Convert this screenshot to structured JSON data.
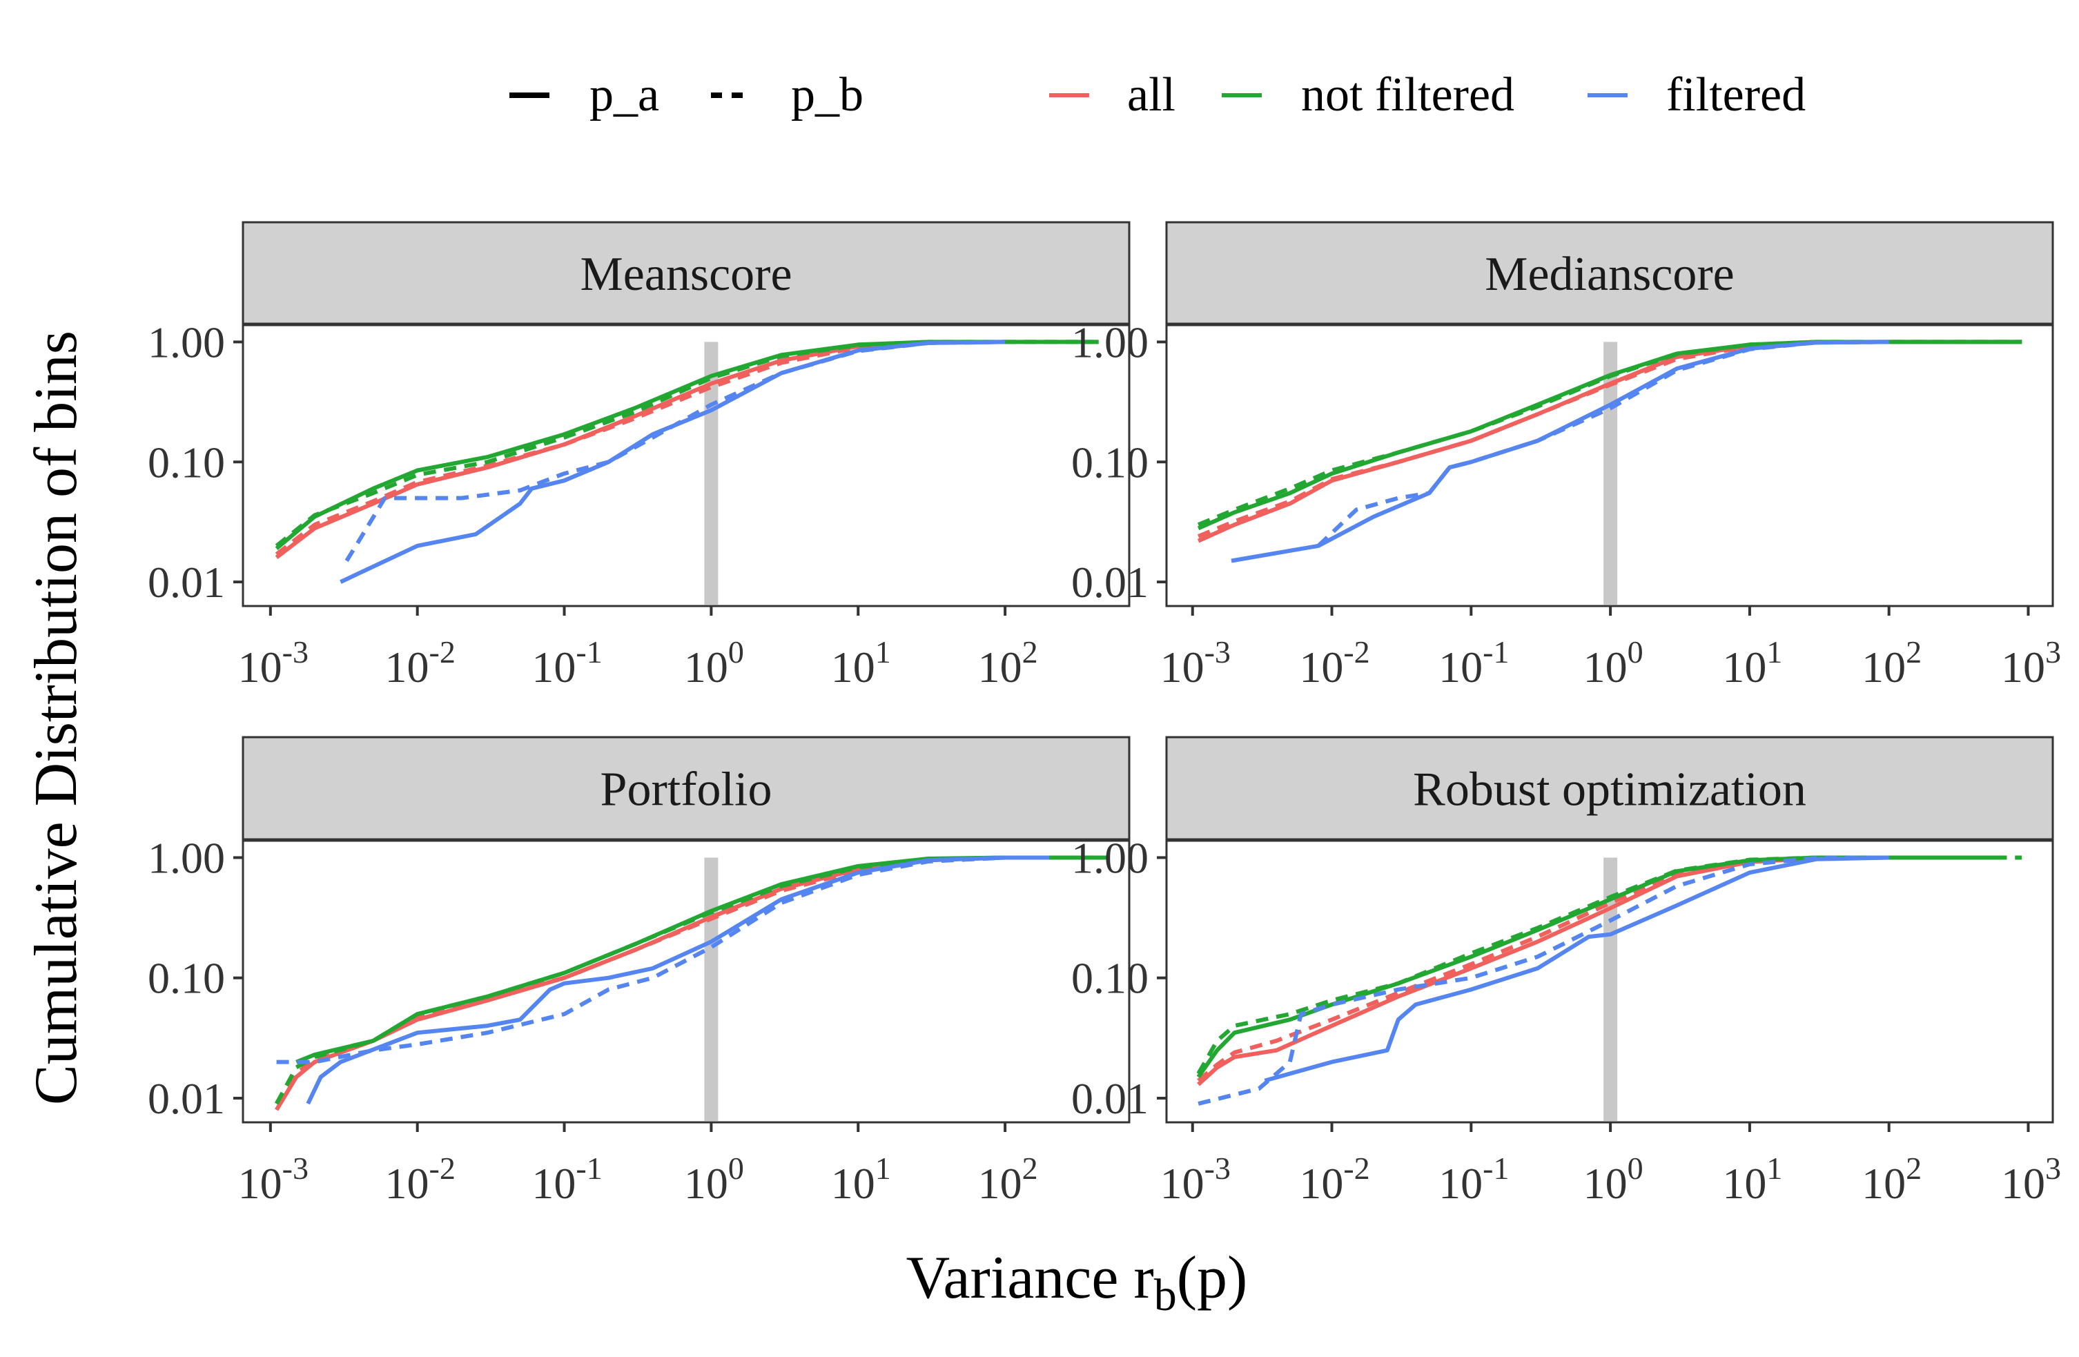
{
  "legend": {
    "linetypes": [
      {
        "label": "p_a",
        "dash": "solid"
      },
      {
        "label": "p_b",
        "dash": "dashed"
      }
    ],
    "groups": [
      {
        "label": "all",
        "color": "#F0605C"
      },
      {
        "label": "not filtered",
        "color": "#22A832"
      },
      {
        "label": "filtered",
        "color": "#5585F0"
      }
    ]
  },
  "axes": {
    "ylabel": "Cumulative Distribution of bins",
    "xlabel_main": "Variance  r",
    "xlabel_sub": "b",
    "xlabel_tail": "(p)"
  },
  "chart_data": [
    {
      "type": "line",
      "title": "Meanscore",
      "x_scale": "log10",
      "y_scale": "log10",
      "xlim": [
        0.00065,
        700
      ],
      "ylim": [
        0.0063,
        1.4
      ],
      "x_ticks": [
        0.001,
        0.01,
        0.1,
        1,
        10,
        100
      ],
      "y_ticks": [
        0.01,
        0.1,
        1
      ],
      "y_tick_labels": [
        "0.01",
        "0.10",
        "1.00"
      ],
      "reference_x": 1,
      "series": [
        {
          "group": "all",
          "linetype": "p_a",
          "x": [
            0.0011,
            0.002,
            0.005,
            0.01,
            0.03,
            0.1,
            0.3,
            1,
            3,
            10,
            30,
            100
          ],
          "y": [
            0.016,
            0.028,
            0.045,
            0.065,
            0.09,
            0.14,
            0.24,
            0.45,
            0.7,
            0.92,
            0.99,
            1.0
          ]
        },
        {
          "group": "all",
          "linetype": "p_b",
          "x": [
            0.0011,
            0.002,
            0.005,
            0.01,
            0.03,
            0.1,
            0.3,
            1,
            3,
            10,
            30,
            100,
            500
          ],
          "y": [
            0.017,
            0.03,
            0.047,
            0.068,
            0.093,
            0.14,
            0.23,
            0.42,
            0.67,
            0.9,
            0.99,
            1.0,
            1.0
          ]
        },
        {
          "group": "not filtered",
          "linetype": "p_a",
          "x": [
            0.0011,
            0.002,
            0.005,
            0.01,
            0.03,
            0.1,
            0.3,
            1,
            3,
            10,
            30,
            100,
            400
          ],
          "y": [
            0.019,
            0.035,
            0.06,
            0.085,
            0.11,
            0.17,
            0.28,
            0.52,
            0.78,
            0.95,
            1.0,
            1.0,
            1.0
          ]
        },
        {
          "group": "not filtered",
          "linetype": "p_b",
          "x": [
            0.0011,
            0.002,
            0.005,
            0.01,
            0.03,
            0.1,
            0.3,
            1,
            3,
            10,
            30,
            100,
            480
          ],
          "y": [
            0.02,
            0.036,
            0.055,
            0.078,
            0.1,
            0.16,
            0.26,
            0.5,
            0.76,
            0.94,
            1.0,
            1.0,
            1.0
          ]
        },
        {
          "group": "filtered",
          "linetype": "p_a",
          "x": [
            0.003,
            0.01,
            0.025,
            0.05,
            0.06,
            0.1,
            0.2,
            0.4,
            1,
            3,
            10,
            30,
            100
          ],
          "y": [
            0.01,
            0.02,
            0.025,
            0.045,
            0.06,
            0.07,
            0.1,
            0.17,
            0.27,
            0.55,
            0.85,
            0.98,
            1.0
          ]
        },
        {
          "group": "filtered",
          "linetype": "p_b",
          "x": [
            0.0033,
            0.004,
            0.006,
            0.02,
            0.05,
            0.1,
            0.2,
            0.4,
            1,
            3,
            10,
            30,
            100
          ],
          "y": [
            0.015,
            0.022,
            0.05,
            0.05,
            0.058,
            0.08,
            0.1,
            0.16,
            0.3,
            0.55,
            0.84,
            0.98,
            1.0
          ]
        }
      ]
    },
    {
      "type": "line",
      "title": "Medianscore",
      "x_scale": "log10",
      "y_scale": "log10",
      "xlim": [
        0.00065,
        1500
      ],
      "ylim": [
        0.0063,
        1.4
      ],
      "x_ticks": [
        0.001,
        0.01,
        0.1,
        1,
        10,
        100,
        1000
      ],
      "y_ticks": [
        0.01,
        0.1,
        1
      ],
      "y_tick_labels": [
        "0.01",
        "0.10",
        "1.00"
      ],
      "reference_x": 1,
      "series": [
        {
          "group": "all",
          "linetype": "p_a",
          "x": [
            0.0011,
            0.002,
            0.005,
            0.01,
            0.03,
            0.1,
            0.3,
            1,
            3,
            10,
            30,
            100,
            900
          ],
          "y": [
            0.022,
            0.03,
            0.045,
            0.07,
            0.1,
            0.15,
            0.25,
            0.45,
            0.75,
            0.93,
            0.99,
            1.0,
            1.0
          ]
        },
        {
          "group": "all",
          "linetype": "p_b",
          "x": [
            0.0011,
            0.002,
            0.005,
            0.01,
            0.03,
            0.1,
            0.3,
            1,
            3,
            10,
            30,
            100,
            900
          ],
          "y": [
            0.024,
            0.032,
            0.047,
            0.072,
            0.1,
            0.15,
            0.25,
            0.44,
            0.72,
            0.92,
            0.99,
            1.0,
            1.0
          ]
        },
        {
          "group": "not filtered",
          "linetype": "p_a",
          "x": [
            0.0011,
            0.002,
            0.005,
            0.01,
            0.03,
            0.1,
            0.3,
            1,
            3,
            10,
            30,
            100,
            900
          ],
          "y": [
            0.028,
            0.038,
            0.055,
            0.08,
            0.12,
            0.18,
            0.3,
            0.53,
            0.8,
            0.95,
            1.0,
            1.0,
            1.0
          ]
        },
        {
          "group": "not filtered",
          "linetype": "p_b",
          "x": [
            0.0011,
            0.002,
            0.005,
            0.01,
            0.03,
            0.1,
            0.3,
            1,
            3,
            10,
            30,
            100,
            900
          ],
          "y": [
            0.03,
            0.04,
            0.06,
            0.085,
            0.12,
            0.18,
            0.29,
            0.52,
            0.79,
            0.95,
            1.0,
            1.0,
            1.0
          ]
        },
        {
          "group": "filtered",
          "linetype": "p_a",
          "x": [
            0.0019,
            0.008,
            0.02,
            0.05,
            0.07,
            0.1,
            0.3,
            1,
            3,
            10,
            30,
            100
          ],
          "y": [
            0.015,
            0.02,
            0.035,
            0.055,
            0.09,
            0.1,
            0.15,
            0.3,
            0.6,
            0.88,
            0.99,
            1.0
          ]
        },
        {
          "group": "filtered",
          "linetype": "p_b",
          "x": [
            0.008,
            0.015,
            0.03,
            0.05,
            0.07,
            0.1,
            0.3,
            1,
            3,
            10,
            30,
            100
          ],
          "y": [
            0.02,
            0.04,
            0.05,
            0.055,
            0.09,
            0.1,
            0.15,
            0.28,
            0.58,
            0.87,
            0.99,
            1.0
          ]
        }
      ]
    },
    {
      "type": "line",
      "title": "Portfolio",
      "x_scale": "log10",
      "y_scale": "log10",
      "xlim": [
        0.00065,
        700
      ],
      "ylim": [
        0.0063,
        1.4
      ],
      "x_ticks": [
        0.001,
        0.01,
        0.1,
        1,
        10,
        100
      ],
      "y_ticks": [
        0.01,
        0.1,
        1
      ],
      "y_tick_labels": [
        "0.01",
        "0.10",
        "1.00"
      ],
      "reference_x": 1,
      "series": [
        {
          "group": "all",
          "linetype": "p_a",
          "x": [
            0.0011,
            0.0015,
            0.002,
            0.005,
            0.01,
            0.03,
            0.1,
            0.3,
            1,
            3,
            10,
            30,
            100
          ],
          "y": [
            0.008,
            0.015,
            0.02,
            0.03,
            0.045,
            0.065,
            0.1,
            0.17,
            0.32,
            0.55,
            0.8,
            0.96,
            1.0
          ]
        },
        {
          "group": "all",
          "linetype": "p_b",
          "x": [
            0.0011,
            0.0015,
            0.002,
            0.005,
            0.01,
            0.03,
            0.1,
            0.3,
            1,
            3,
            10,
            30,
            100
          ],
          "y": [
            0.009,
            0.016,
            0.021,
            0.03,
            0.047,
            0.067,
            0.1,
            0.17,
            0.31,
            0.53,
            0.78,
            0.95,
            1.0
          ]
        },
        {
          "group": "not filtered",
          "linetype": "p_a",
          "x": [
            0.0015,
            0.002,
            0.005,
            0.01,
            0.03,
            0.1,
            0.3,
            1,
            3,
            10,
            30,
            100,
            500
          ],
          "y": [
            0.02,
            0.023,
            0.03,
            0.05,
            0.07,
            0.11,
            0.19,
            0.36,
            0.6,
            0.85,
            0.98,
            1.0,
            1.0
          ]
        },
        {
          "group": "not filtered",
          "linetype": "p_b",
          "x": [
            0.0011,
            0.0015,
            0.002,
            0.005,
            0.01,
            0.03,
            0.1,
            0.3,
            1,
            3,
            10,
            30,
            100,
            480
          ],
          "y": [
            0.009,
            0.018,
            0.022,
            0.03,
            0.05,
            0.07,
            0.11,
            0.19,
            0.35,
            0.58,
            0.83,
            0.97,
            1.0,
            1.0
          ]
        },
        {
          "group": "filtered",
          "linetype": "p_a",
          "x": [
            0.0018,
            0.0022,
            0.003,
            0.01,
            0.03,
            0.05,
            0.08,
            0.1,
            0.2,
            0.4,
            1,
            3,
            10,
            30,
            100,
            200
          ],
          "y": [
            0.009,
            0.015,
            0.02,
            0.035,
            0.04,
            0.045,
            0.08,
            0.09,
            0.1,
            0.12,
            0.2,
            0.45,
            0.75,
            0.95,
            1.0,
            1.0
          ]
        },
        {
          "group": "filtered",
          "linetype": "p_b",
          "x": [
            0.0011,
            0.002,
            0.005,
            0.01,
            0.03,
            0.1,
            0.2,
            0.4,
            1,
            3,
            10,
            30,
            100
          ],
          "y": [
            0.02,
            0.02,
            0.025,
            0.028,
            0.035,
            0.05,
            0.08,
            0.1,
            0.18,
            0.42,
            0.72,
            0.93,
            1.0
          ]
        }
      ]
    },
    {
      "type": "line",
      "title": "Robust optimization",
      "x_scale": "log10",
      "y_scale": "log10",
      "xlim": [
        0.00065,
        1500
      ],
      "ylim": [
        0.0063,
        1.4
      ],
      "x_ticks": [
        0.001,
        0.01,
        0.1,
        1,
        10,
        100,
        1000
      ],
      "y_ticks": [
        0.01,
        0.1,
        1
      ],
      "y_tick_labels": [
        "0.01",
        "0.10",
        "1.00"
      ],
      "reference_x": 1,
      "series": [
        {
          "group": "all",
          "linetype": "p_a",
          "x": [
            0.0011,
            0.0015,
            0.002,
            0.004,
            0.01,
            0.03,
            0.1,
            0.3,
            1,
            3,
            10,
            30,
            100,
            700
          ],
          "y": [
            0.013,
            0.018,
            0.022,
            0.025,
            0.04,
            0.07,
            0.12,
            0.2,
            0.38,
            0.7,
            0.92,
            0.99,
            1.0,
            1.0
          ]
        },
        {
          "group": "all",
          "linetype": "p_b",
          "x": [
            0.0011,
            0.0015,
            0.002,
            0.004,
            0.01,
            0.03,
            0.1,
            0.3,
            1,
            3,
            10,
            30,
            100,
            700
          ],
          "y": [
            0.014,
            0.019,
            0.024,
            0.03,
            0.045,
            0.075,
            0.13,
            0.22,
            0.42,
            0.72,
            0.93,
            0.99,
            1.0,
            1.0
          ]
        },
        {
          "group": "not filtered",
          "linetype": "p_a",
          "x": [
            0.0011,
            0.0015,
            0.002,
            0.005,
            0.01,
            0.03,
            0.1,
            0.3,
            1,
            3,
            10,
            30,
            100,
            700
          ],
          "y": [
            0.015,
            0.025,
            0.035,
            0.045,
            0.06,
            0.09,
            0.15,
            0.25,
            0.45,
            0.77,
            0.95,
            1.0,
            1.0,
            1.0
          ]
        },
        {
          "group": "not filtered",
          "linetype": "p_b",
          "x": [
            0.0011,
            0.0015,
            0.002,
            0.005,
            0.01,
            0.03,
            0.1,
            0.3,
            1,
            3,
            10,
            30,
            100,
            900
          ],
          "y": [
            0.016,
            0.03,
            0.04,
            0.05,
            0.065,
            0.09,
            0.16,
            0.26,
            0.47,
            0.78,
            0.96,
            1.0,
            1.0,
            1.0
          ]
        },
        {
          "group": "filtered",
          "linetype": "p_a",
          "x": [
            0.0033,
            0.01,
            0.025,
            0.03,
            0.04,
            0.1,
            0.3,
            0.7,
            1,
            3,
            10,
            30,
            100
          ],
          "y": [
            0.014,
            0.02,
            0.025,
            0.045,
            0.06,
            0.08,
            0.12,
            0.22,
            0.23,
            0.4,
            0.75,
            0.97,
            1.0
          ]
        },
        {
          "group": "filtered",
          "linetype": "p_b",
          "x": [
            0.0011,
            0.003,
            0.005,
            0.006,
            0.01,
            0.03,
            0.1,
            0.3,
            1,
            3,
            10,
            30,
            100
          ],
          "y": [
            0.009,
            0.012,
            0.02,
            0.05,
            0.06,
            0.08,
            0.1,
            0.15,
            0.3,
            0.58,
            0.88,
            0.99,
            1.0
          ]
        }
      ]
    }
  ]
}
